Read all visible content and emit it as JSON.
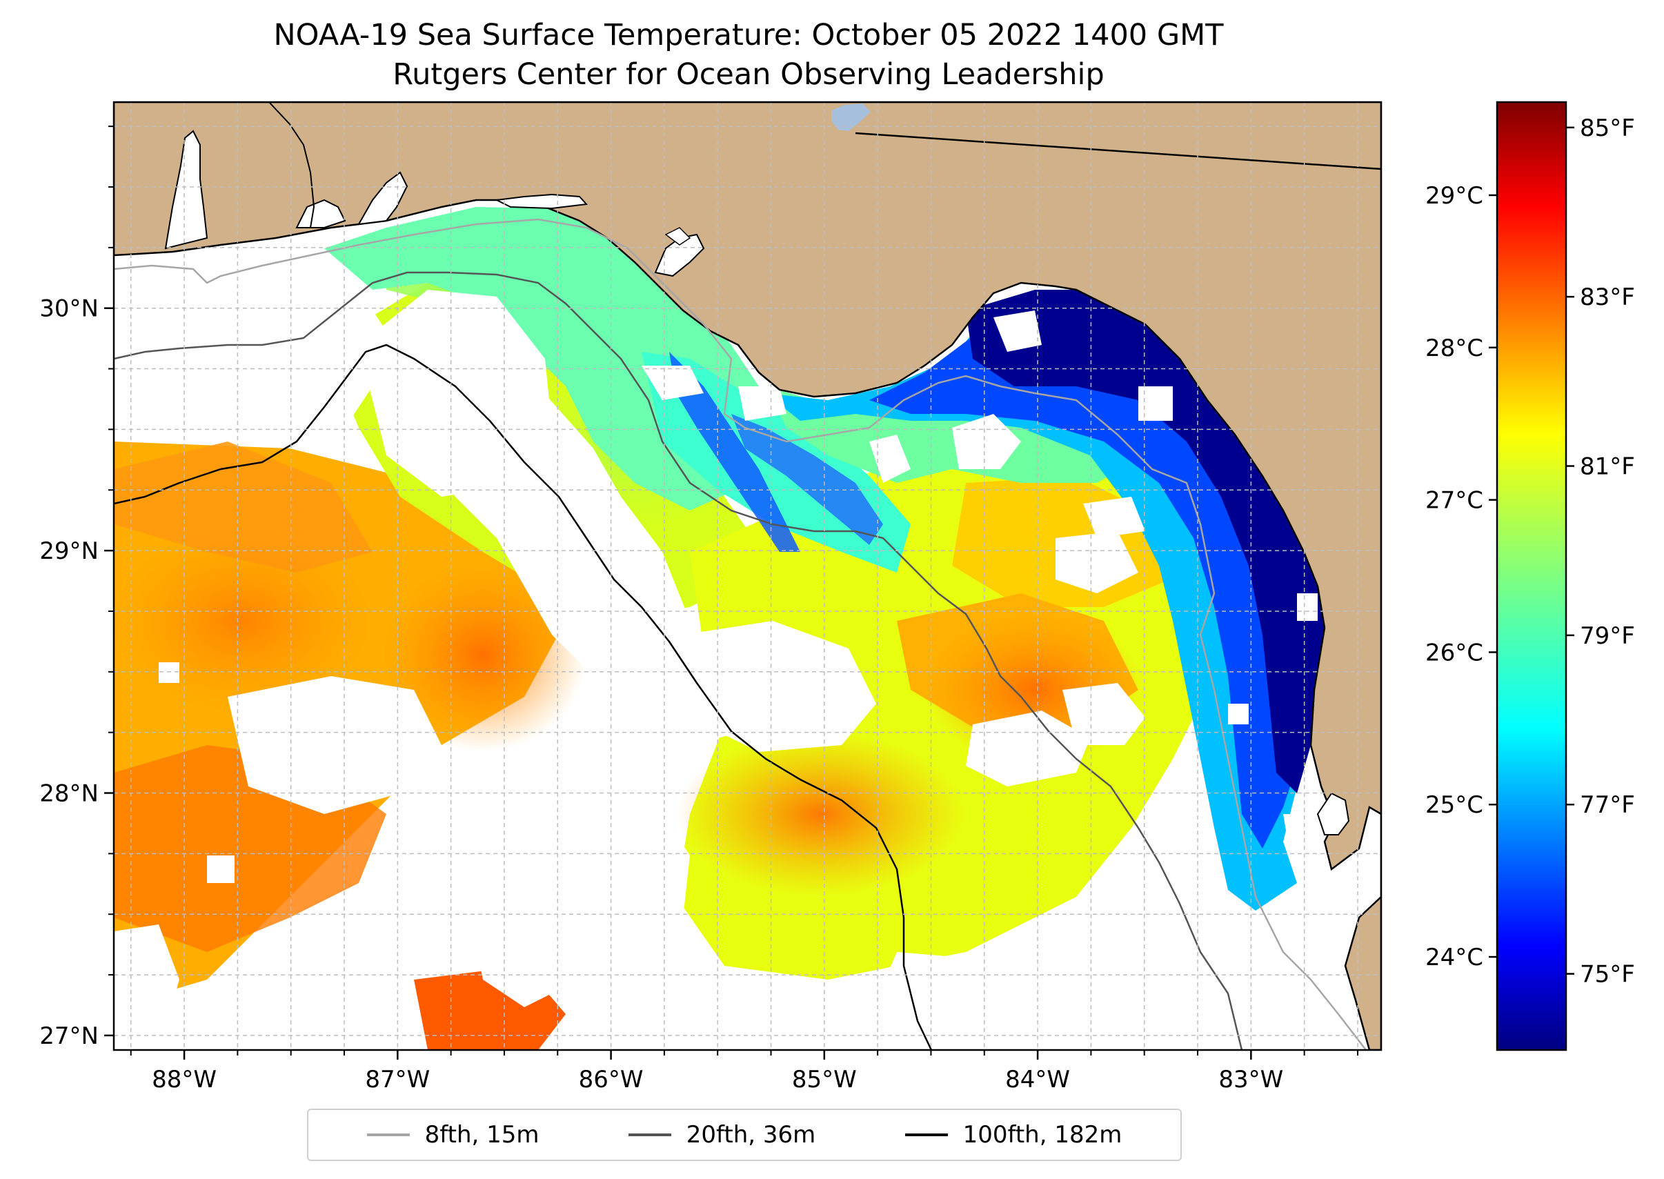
{
  "title": "NOAA-19 Sea Surface Temperature: October 05 2022 1400 GMT",
  "subtitle": "Rutgers Center for Ocean Observing Leadership",
  "map": {
    "extent": {
      "lon_min": -88.33,
      "lon_max": -82.39,
      "lat_min": 26.94,
      "lat_max": 30.85
    },
    "lon_ticks": [
      -88,
      -87,
      -86,
      -85,
      -84,
      -83
    ],
    "lon_tick_labels": [
      "88°W",
      "87°W",
      "86°W",
      "85°W",
      "84°W",
      "83°W"
    ],
    "lat_ticks": [
      27,
      28,
      29,
      30
    ],
    "lat_tick_labels": [
      "27°N",
      "28°N",
      "29°N",
      "30°N"
    ],
    "gridlines": true,
    "land_color": "#d0b18a",
    "nodata_color": "#ffffff",
    "water_color": "#a5bfdd"
  },
  "colorbar": {
    "min_f": 74.1,
    "max_f": 85.3,
    "colormap": "jet",
    "f_ticks": [
      75,
      77,
      79,
      81,
      83,
      85
    ],
    "f_tick_labels": [
      "75°F",
      "77°F",
      "79°F",
      "81°F",
      "83°F",
      "85°F"
    ],
    "c_ticks": [
      24,
      25,
      26,
      27,
      28,
      29
    ],
    "c_tick_labels": [
      "24°C",
      "25°C",
      "26°C",
      "27°C",
      "28°C",
      "29°C"
    ]
  },
  "legend": {
    "placement": "bottom-center",
    "items": [
      {
        "label": "8fth, 15m",
        "color": "#a6a6a6"
      },
      {
        "label": "20fth, 36m",
        "color": "#555555"
      },
      {
        "label": "100fth, 182m",
        "color": "#000000"
      }
    ]
  }
}
